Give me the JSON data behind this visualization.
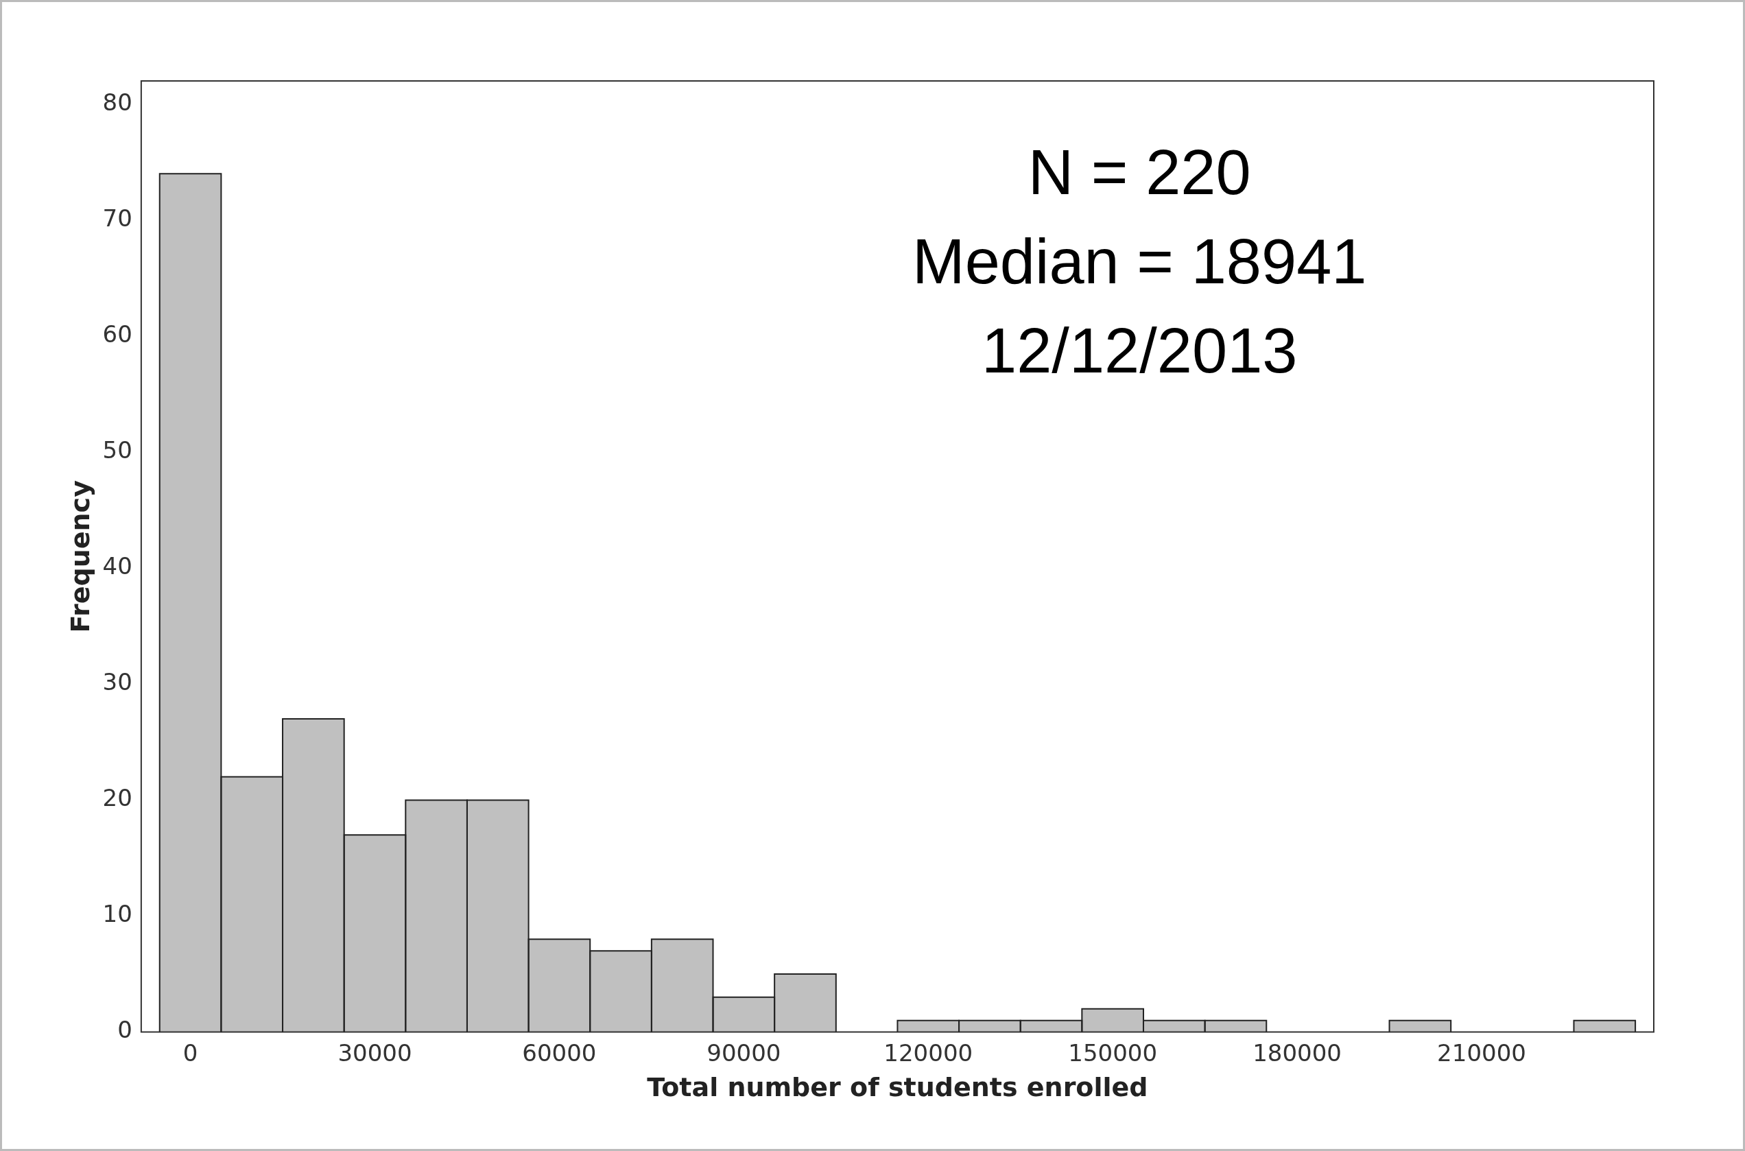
{
  "chart_data": {
    "type": "histogram",
    "xlabel": "Total number of students enrolled",
    "ylabel": "Frequency",
    "bins": [
      -5000,
      5000,
      15000,
      25000,
      35000,
      45000,
      55000,
      65000,
      75000,
      85000,
      95000,
      105000,
      115000,
      125000,
      135000,
      145000,
      155000,
      165000,
      175000,
      185000,
      195000,
      205000,
      215000,
      225000,
      235000
    ],
    "values": [
      74,
      22,
      27,
      17,
      20,
      20,
      8,
      7,
      8,
      3,
      5,
      0,
      1,
      1,
      1,
      2,
      1,
      1,
      0,
      0,
      1,
      0,
      0,
      1
    ],
    "color": "#c0c0c0",
    "xlim": [
      -8000,
      238000
    ],
    "xticks": [
      0,
      30000,
      60000,
      90000,
      120000,
      150000,
      180000,
      210000
    ],
    "ylim": [
      0,
      82
    ],
    "yticks": [
      0,
      10,
      20,
      30,
      40,
      50,
      60,
      70,
      80
    ],
    "grid": false,
    "legend": false,
    "annotations": [
      "N = 220",
      "Median = 18941",
      "12/12/2013"
    ]
  }
}
